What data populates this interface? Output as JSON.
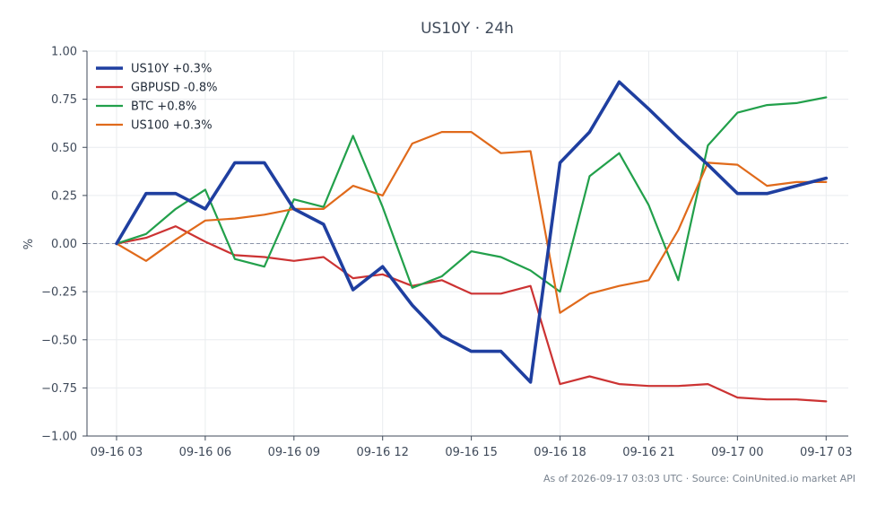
{
  "chart_data": {
    "type": "line",
    "title": "US10Y · 24h",
    "xlabel": "",
    "ylabel": "%",
    "ylim": [
      -1.0,
      1.0
    ],
    "yticks": [
      1.0,
      0.75,
      0.5,
      0.25,
      0.0,
      -0.25,
      -0.5,
      -0.75,
      -1.0
    ],
    "ytick_labels": [
      "1.00",
      "0.75",
      "0.50",
      "0.25",
      "0.00",
      "−0.25",
      "−0.50",
      "−0.75",
      "−1.00"
    ],
    "xlim": [
      "2026-09-16 02:00",
      "2026-09-17 03:45"
    ],
    "xtick_labels": [
      "09-16 03",
      "09-16 06",
      "09-16 09",
      "09-16 12",
      "09-16 15",
      "09-16 18",
      "09-16 21",
      "09-17 00",
      "09-17 03"
    ],
    "xticks": [
      "2026-09-16 03:00",
      "2026-09-16 06:00",
      "2026-09-16 09:00",
      "2026-09-16 12:00",
      "2026-09-16 15:00",
      "2026-09-16 18:00",
      "2026-09-16 21:00",
      "2026-09-17 00:00",
      "2026-09-17 03:00"
    ],
    "x": [
      "2026-09-16 03:00",
      "2026-09-16 04:00",
      "2026-09-16 05:00",
      "2026-09-16 06:00",
      "2026-09-16 07:00",
      "2026-09-16 08:00",
      "2026-09-16 09:00",
      "2026-09-16 10:00",
      "2026-09-16 11:00",
      "2026-09-16 12:00",
      "2026-09-16 13:00",
      "2026-09-16 14:00",
      "2026-09-16 15:00",
      "2026-09-16 16:00",
      "2026-09-16 17:00",
      "2026-09-16 18:00",
      "2026-09-16 19:00",
      "2026-09-16 20:00",
      "2026-09-16 21:00",
      "2026-09-16 22:00",
      "2026-09-16 23:00",
      "2026-09-17 00:00",
      "2026-09-17 01:00",
      "2026-09-17 02:00",
      "2026-09-17 03:00"
    ],
    "grid": true,
    "zero_line": true,
    "legend_position": "top-left",
    "series": [
      {
        "name": "US10Y +0.3%",
        "color": "#1f3fa0",
        "values": [
          0.0,
          0.26,
          0.26,
          0.18,
          0.42,
          0.42,
          0.18,
          0.1,
          -0.24,
          -0.12,
          -0.32,
          -0.48,
          -0.56,
          -0.56,
          -0.72,
          0.42,
          0.58,
          0.84,
          0.7,
          0.55,
          0.41,
          0.26,
          0.26,
          0.3,
          0.34
        ]
      },
      {
        "name": "GBPUSD -0.8%",
        "color": "#cc3333",
        "values": [
          0.0,
          0.03,
          0.09,
          0.01,
          -0.06,
          -0.07,
          -0.09,
          -0.07,
          -0.18,
          -0.16,
          -0.22,
          -0.19,
          -0.26,
          -0.26,
          -0.22,
          -0.73,
          -0.69,
          -0.73,
          -0.74,
          -0.74,
          -0.73,
          -0.8,
          -0.81,
          -0.81,
          -0.82
        ]
      },
      {
        "name": "BTC +0.8%",
        "color": "#22a04b",
        "values": [
          0.0,
          0.05,
          0.18,
          0.28,
          -0.08,
          -0.12,
          0.23,
          0.19,
          0.56,
          0.19,
          -0.23,
          -0.17,
          -0.04,
          -0.07,
          -0.14,
          -0.25,
          0.35,
          0.47,
          0.2,
          -0.19,
          0.51,
          0.68,
          0.72,
          0.73,
          0.76
        ]
      },
      {
        "name": "US100 +0.3%",
        "color": "#e06a1b",
        "values": [
          0.0,
          -0.09,
          0.02,
          0.12,
          0.13,
          0.15,
          0.18,
          0.18,
          0.3,
          0.25,
          0.52,
          0.58,
          0.58,
          0.47,
          0.48,
          -0.36,
          -0.26,
          -0.22,
          -0.19,
          0.07,
          0.42,
          0.41,
          0.3,
          0.32,
          0.32
        ]
      }
    ],
    "footer": "As of 2026-09-17 03:03 UTC · Source: CoinUnited.io market API"
  }
}
